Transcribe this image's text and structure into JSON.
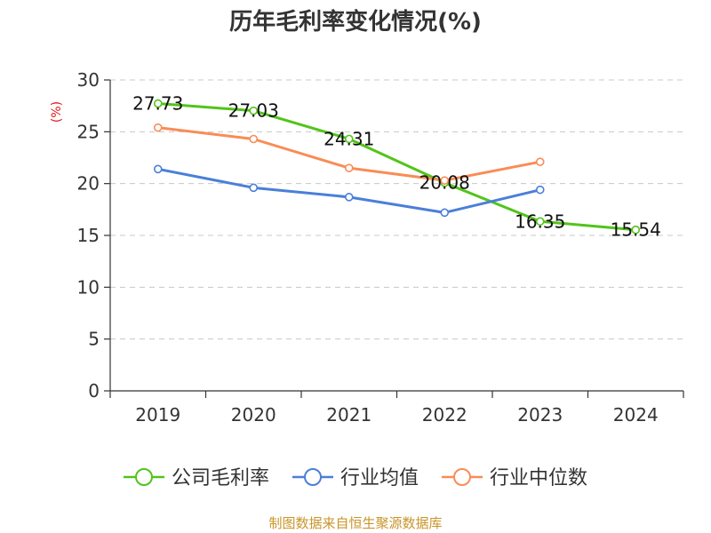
{
  "chart_data": {
    "type": "line",
    "title": "历年毛利率变化情况(%)",
    "ylabel": "(%)",
    "xlabel": "",
    "categories": [
      "2019",
      "2020",
      "2021",
      "2022",
      "2023",
      "2024"
    ],
    "ylim": [
      0,
      30
    ],
    "yticks": [
      0,
      5,
      10,
      15,
      20,
      25,
      30
    ],
    "grid": true,
    "legend_position": "bottom",
    "series": [
      {
        "name": "公司毛利率",
        "color": "#52c41a",
        "values": [
          27.73,
          27.03,
          24.31,
          20.08,
          16.35,
          15.54
        ],
        "data_labels": [
          "27.73",
          "27.03",
          "24.31",
          "20.08",
          "16.35",
          "15.54"
        ]
      },
      {
        "name": "行业均值",
        "color": "#4a7fd8",
        "values": [
          21.4,
          19.6,
          18.7,
          17.2,
          19.4,
          null
        ]
      },
      {
        "name": "行业中位数",
        "color": "#f98c55",
        "values": [
          25.4,
          24.3,
          21.5,
          20.3,
          22.1,
          null
        ]
      }
    ],
    "source": "制图数据来自恒生聚源数据库"
  }
}
